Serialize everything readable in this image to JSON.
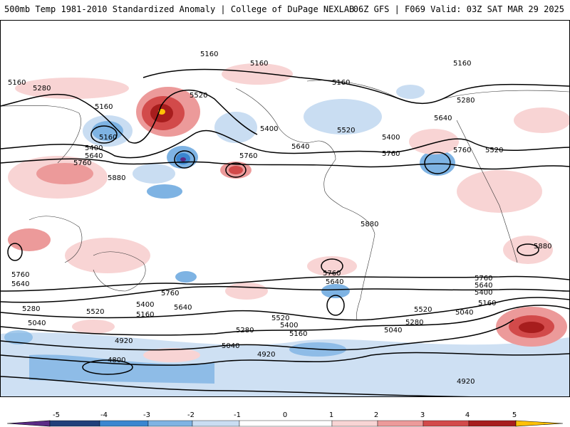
{
  "header": {
    "title": "500mb Temp 1981-2010 Standardized Anomaly | College of DuPage NEXLAB",
    "valid": "06Z GFS | F069 Valid: 03Z SAT MAR 29 2025"
  },
  "map": {
    "variable": "500mb temperature standardized anomaly",
    "contour_field": "500mb geopotential height",
    "contour_labels": [
      "5160",
      "5280",
      "5520",
      "5400",
      "5640",
      "5760",
      "5880",
      "4920",
      "4800",
      "5040"
    ],
    "colors": {
      "neg5": "#5b2a86",
      "neg4": "#1f3f7a",
      "neg3": "#3a86d0",
      "neg2": "#7eb3e3",
      "neg1": "#c9ddf2",
      "zero": "#ffffff",
      "pos1": "#f8d4d4",
      "pos2": "#ec9a9a",
      "pos3": "#d24a4a",
      "pos4": "#a71d1d",
      "pos5": "#ffc107"
    }
  },
  "legend": {
    "ticks": [
      "-5",
      "-4",
      "-3",
      "-2",
      "-1",
      "0",
      "1",
      "2",
      "3",
      "4",
      "5"
    ]
  }
}
